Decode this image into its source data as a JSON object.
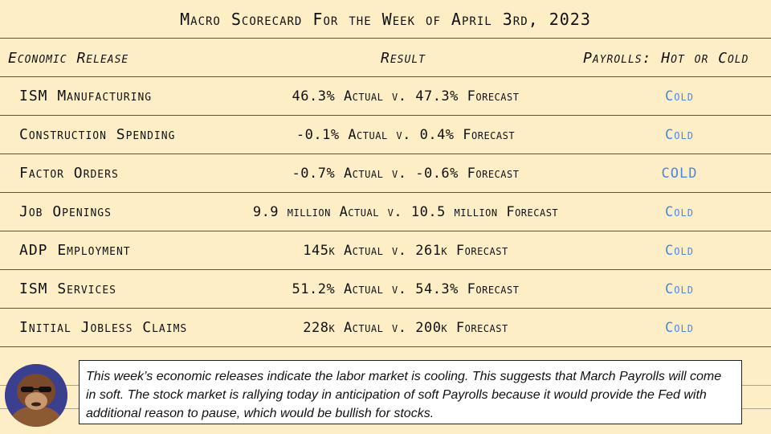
{
  "title": "Macro Scorecard For the Week of April 3rd, 2023",
  "headers": {
    "release": "Economic Release",
    "result": "Result",
    "payrolls": "Payrolls: Hot or Cold"
  },
  "rows": [
    {
      "release": "ISM Manufacturing",
      "result": "46.3% Actual v. 47.3% Forecast",
      "verdict": "Cold"
    },
    {
      "release": "Construction Spending",
      "result": "-0.1% Actual v. 0.4% Forecast",
      "verdict": "Cold"
    },
    {
      "release": "Factor Orders",
      "result": "-0.7% Actual v. -0.6% Forecast",
      "verdict": "COLD"
    },
    {
      "release": "Job Openings",
      "result": "9.9 million Actual v. 10.5 million Forecast",
      "verdict": "Cold"
    },
    {
      "release": "ADP Employment",
      "result": "145k Actual v. 261k Forecast",
      "verdict": "Cold"
    },
    {
      "release": "ISM Services",
      "result": "51.2% Actual v. 54.3% Forecast",
      "verdict": "Cold"
    },
    {
      "release": "Initial Jobless Claims",
      "result": "228k Actual v. 200k Forecast",
      "verdict": "Cold"
    }
  ],
  "note": "This week’s economic releases indicate the labor market is cooling. This suggests that March Payrolls will come in soft. The stock market is rallying today in anticipation of soft Payrolls because it would provide the Fed with additional reason to pause, which would be bullish for stocks.",
  "colors": {
    "background": "#fdeec6",
    "verdict": "#4a86e8",
    "avatar_bg": "#3a3f8f"
  },
  "avatar_icon": "gorilla-with-sunglasses"
}
